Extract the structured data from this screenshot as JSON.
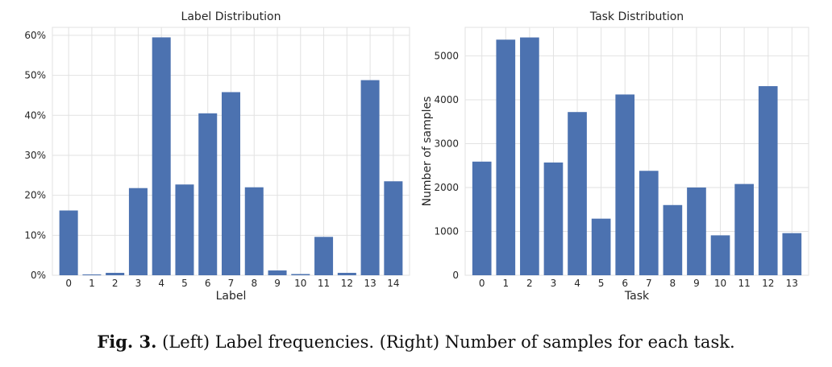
{
  "caption": {
    "prefix": "Fig. 3.",
    "text": "(Left) Label frequencies. (Right) Number of samples for each task."
  },
  "colors": {
    "bar": "#4C72B0",
    "grid": "#e2e2e2",
    "axis": "#b8b8b8"
  },
  "chart_data": [
    {
      "type": "bar",
      "title": "Label Distribution",
      "xlabel": "Label",
      "ylabel": "",
      "categories": [
        "0",
        "1",
        "2",
        "3",
        "4",
        "5",
        "6",
        "7",
        "8",
        "9",
        "10",
        "11",
        "12",
        "13",
        "14"
      ],
      "values": [
        16.2,
        0.2,
        0.6,
        21.8,
        59.5,
        22.7,
        40.5,
        45.8,
        22.0,
        1.2,
        0.3,
        9.6,
        0.6,
        48.8,
        23.5
      ],
      "ylim": [
        0,
        62
      ],
      "yticks": [
        0,
        10,
        20,
        30,
        40,
        50,
        60
      ],
      "ytick_labels": [
        "0%",
        "10%",
        "20%",
        "30%",
        "40%",
        "50%",
        "60%"
      ],
      "grid": true
    },
    {
      "type": "bar",
      "title": "Task Distribution",
      "xlabel": "Task",
      "ylabel": "Number of samples",
      "categories": [
        "0",
        "1",
        "2",
        "3",
        "4",
        "5",
        "6",
        "7",
        "8",
        "9",
        "10",
        "11",
        "12",
        "13"
      ],
      "values": [
        2590,
        5370,
        5420,
        2570,
        3720,
        1290,
        4120,
        2380,
        1600,
        2000,
        910,
        2080,
        4310,
        960
      ],
      "ylim": [
        0,
        5650
      ],
      "yticks": [
        0,
        1000,
        2000,
        3000,
        4000,
        5000
      ],
      "ytick_labels": [
        "0",
        "1000",
        "2000",
        "3000",
        "4000",
        "5000"
      ],
      "grid": true
    }
  ]
}
